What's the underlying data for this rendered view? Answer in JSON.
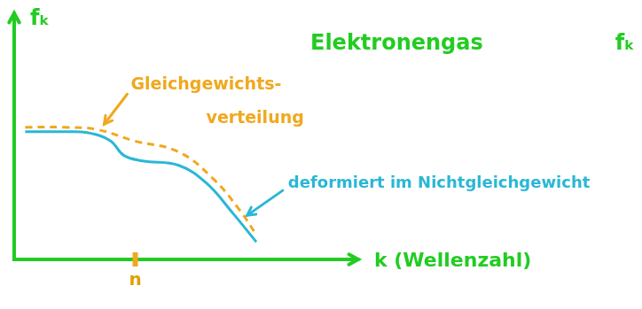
{
  "chart_data": {
    "type": "line",
    "title": "Elektronengas",
    "annotations": [
      "fₖ"
    ],
    "x_label": "k (Wellenzahl)",
    "y_label": "fₖ",
    "xlim": [
      0,
      100
    ],
    "ylim": [
      0,
      100
    ],
    "xticks": [
      {
        "value": 36.5,
        "label": "n"
      }
    ],
    "yticks": [],
    "tick_labels": "x",
    "grid": false,
    "series": [
      {
        "name": "Gleichgewichts-verteilung",
        "color": "#f0a81e",
        "line_style": "dashed",
        "x": [
          3.3,
          15,
          25,
          36,
          49.6,
          60,
          68,
          73
        ],
        "values": [
          59,
          59,
          58,
          53,
          48,
          36,
          22,
          11
        ]
      },
      {
        "name": "deformiert im Nichtgleichgewicht",
        "color": "#2ab7d6",
        "line_style": "solid",
        "x": [
          3.3,
          15,
          22,
          29,
          33,
          38.7,
          49.6,
          58,
          66,
          73
        ],
        "values": [
          57,
          57,
          56.6,
          53,
          46.5,
          44,
          42,
          34,
          20.5,
          7.8
        ]
      }
    ]
  }
}
